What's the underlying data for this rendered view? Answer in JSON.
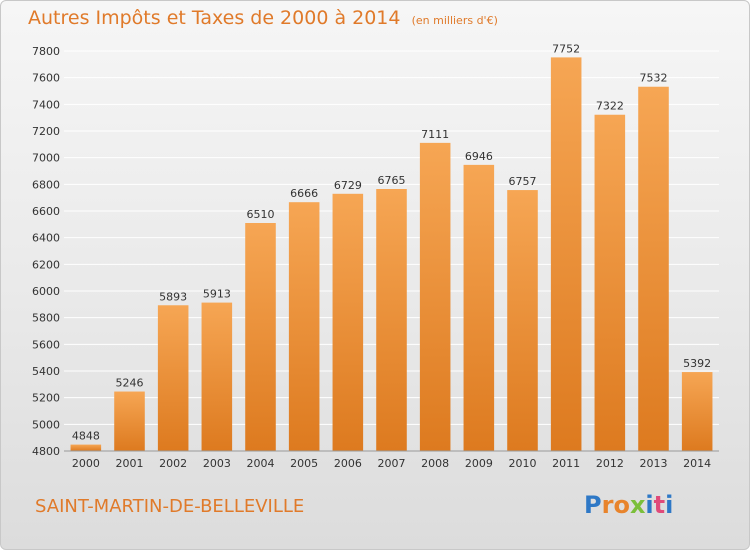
{
  "header": {
    "title": "Autres Impôts et Taxes de 2000 à 2014",
    "subtitle": "(en milliers d'€)"
  },
  "footer": {
    "commune": "SAINT-MARTIN-DE-BELLEVILLE",
    "logo_letters": [
      "P",
      "r",
      "o",
      "x",
      "i",
      "t",
      "i"
    ]
  },
  "colors": {
    "bar_top": "#f6a654",
    "bar_bottom": "#dd7a1f",
    "accent": "#e07a2a",
    "grid": "#ffffff"
  },
  "chart_data": {
    "type": "bar",
    "categories": [
      "2000",
      "2001",
      "2002",
      "2003",
      "2004",
      "2005",
      "2006",
      "2007",
      "2008",
      "2009",
      "2010",
      "2011",
      "2012",
      "2013",
      "2014"
    ],
    "values": [
      4848,
      5246,
      5893,
      5913,
      6510,
      6666,
      6729,
      6765,
      7111,
      6946,
      6757,
      7752,
      7322,
      7532,
      5392
    ],
    "title": "Autres Impôts et Taxes de 2000 à 2014",
    "subtitle": "(en milliers d'€)",
    "ylim": [
      4800,
      7800
    ],
    "yticks": [
      4800,
      5000,
      5200,
      5400,
      5600,
      5800,
      6000,
      6200,
      6400,
      6600,
      6800,
      7000,
      7200,
      7400,
      7600,
      7800
    ],
    "grid": true,
    "data_labels": true
  }
}
